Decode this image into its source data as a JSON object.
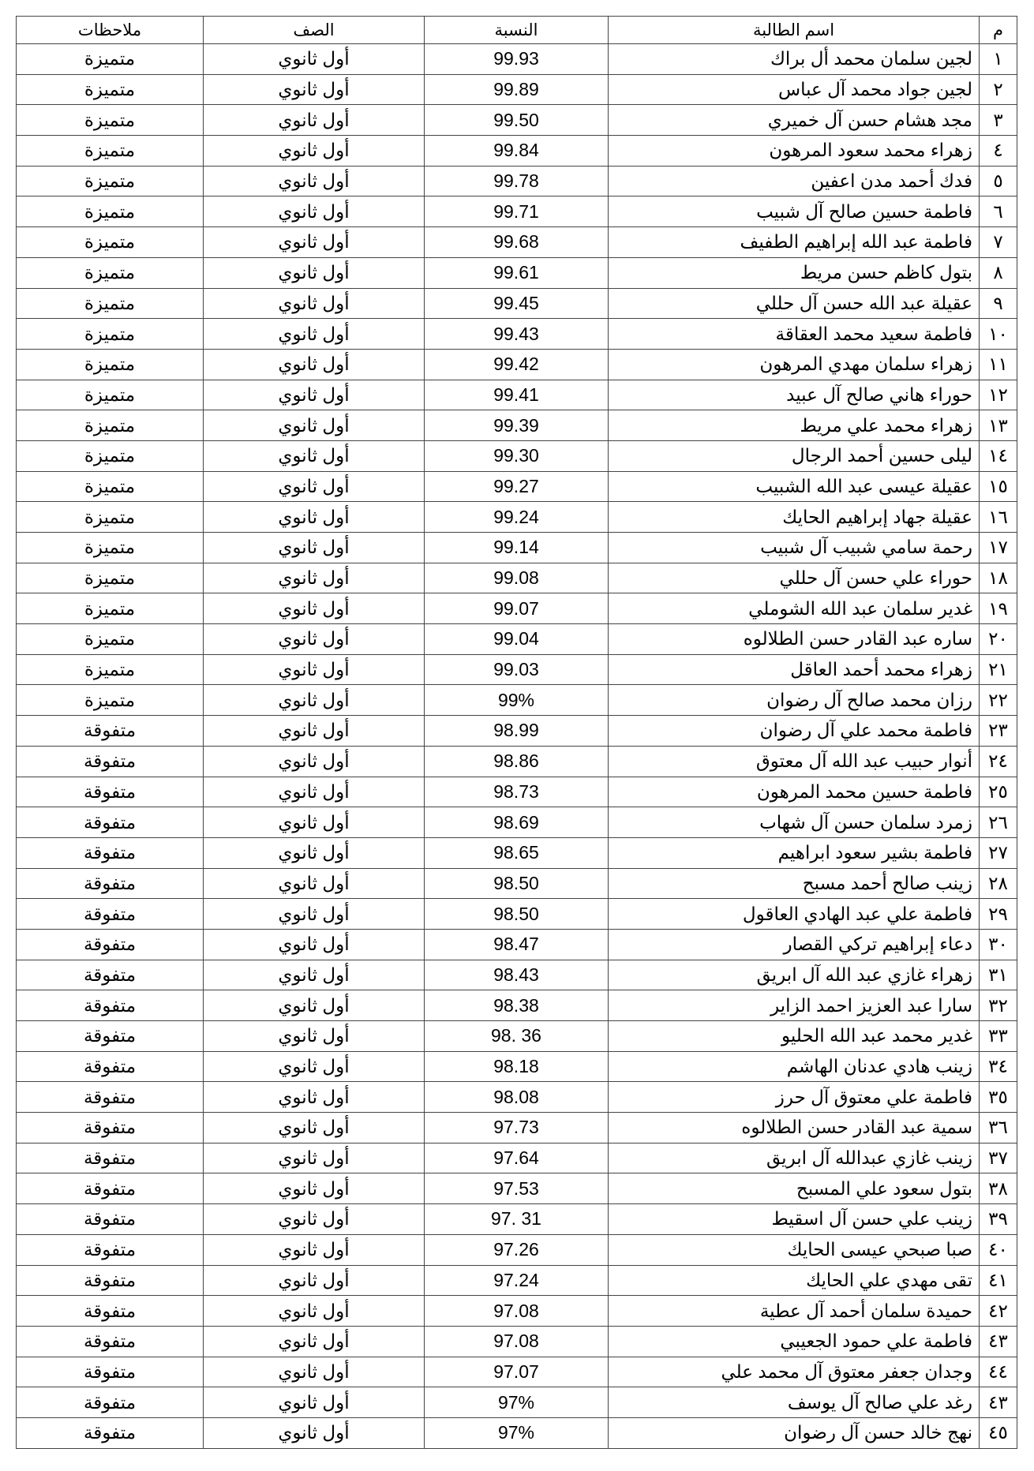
{
  "headers": {
    "num": "م",
    "name": "اسم الطالبة",
    "pct": "النسبة",
    "class": "الصف",
    "note": "ملاحظات"
  },
  "rows": [
    {
      "num": "١",
      "name": "لجين سلمان محمد أل براك",
      "pct": "99.93",
      "class": "أول ثانوي",
      "note": "متميزة"
    },
    {
      "num": "٢",
      "name": "لجين جواد محمد آل عباس",
      "pct": "99.89",
      "class": "أول ثانوي",
      "note": "متميزة"
    },
    {
      "num": "٣",
      "name": "مجد هشام حسن آل خميري",
      "pct": "99.50",
      "class": "أول ثانوي",
      "note": "متميزة"
    },
    {
      "num": "٤",
      "name": "زهراء محمد سعود المرهون",
      "pct": "99.84",
      "class": "أول ثانوي",
      "note": "متميزة"
    },
    {
      "num": "٥",
      "name": "فدك أحمد مدن اعفين",
      "pct": "99.78",
      "class": "أول ثانوي",
      "note": "متميزة"
    },
    {
      "num": "٦",
      "name": "فاطمة  حسين صالح آل شبيب",
      "pct": "99.71",
      "class": "أول ثانوي",
      "note": "متميزة"
    },
    {
      "num": "٧",
      "name": "فاطمة عبد الله إبراهيم الطفيف",
      "pct": "99.68",
      "class": "أول ثانوي",
      "note": "متميزة"
    },
    {
      "num": "٨",
      "name": "بتول كاظم حسن مريط",
      "pct": "99.61",
      "class": "أول ثانوي",
      "note": "متميزة"
    },
    {
      "num": "٩",
      "name": "عقيلة عبد الله حسن آل حللي",
      "pct": "99.45",
      "class": "أول ثانوي",
      "note": "متميزة"
    },
    {
      "num": "١٠",
      "name": "فاطمة سعيد محمد العقاقة",
      "pct": "99.43",
      "class": "أول ثانوي",
      "note": "متميزة"
    },
    {
      "num": "١١",
      "name": "زهراء سلمان مهدي المرهون",
      "pct": "99.42",
      "class": "أول ثانوي",
      "note": "متميزة"
    },
    {
      "num": "١٢",
      "name": "حوراء هاني صالح آل عبيد",
      "pct": "99.41",
      "class": "أول ثانوي",
      "note": "متميزة"
    },
    {
      "num": "١٣",
      "name": "زهراء محمد علي مريط",
      "pct": "99.39",
      "class": "أول ثانوي",
      "note": "متميزة"
    },
    {
      "num": "١٤",
      "name": "ليلى حسين أحمد الرجال",
      "pct": "99.30",
      "class": "أول ثانوي",
      "note": "متميزة"
    },
    {
      "num": "١٥",
      "name": "عقيلة عيسى عبد الله الشبيب",
      "pct": "99.27",
      "class": "أول ثانوي",
      "note": "متميزة"
    },
    {
      "num": "١٦",
      "name": "عقيلة جهاد إبراهيم الحايك",
      "pct": "99.24",
      "class": "أول ثانوي",
      "note": "متميزة"
    },
    {
      "num": "١٧",
      "name": "رحمة سامي شبيب آل شبيب",
      "pct": "99.14",
      "class": "أول ثانوي",
      "note": "متميزة"
    },
    {
      "num": "١٨",
      "name": "حوراء علي حسن آل حللي",
      "pct": "99.08",
      "class": "أول ثانوي",
      "note": "متميزة"
    },
    {
      "num": "١٩",
      "name": "غدير سلمان عبد الله الشوملي",
      "pct": "99.07",
      "class": "أول ثانوي",
      "note": "متميزة"
    },
    {
      "num": "٢٠",
      "name": "ساره عبد القادر حسن الطلالوه",
      "pct": "99.04",
      "class": "أول ثانوي",
      "note": "متميزة"
    },
    {
      "num": "٢١",
      "name": "زهراء محمد أحمد العاقل",
      "pct": "99.03",
      "class": "أول ثانوي",
      "note": "متميزة"
    },
    {
      "num": "٢٢",
      "name": "رزان محمد صالح آل رضوان",
      "pct": "99%",
      "class": "أول ثانوي",
      "note": "متميزة"
    },
    {
      "num": "٢٣",
      "name": "فاطمة محمد علي آل رضوان",
      "pct": "98.99",
      "class": "أول ثانوي",
      "note": "متفوقة"
    },
    {
      "num": "٢٤",
      "name": "أنوار حبيب عبد الله آل معتوق",
      "pct": "98.86",
      "class": "أول ثانوي",
      "note": "متفوقة"
    },
    {
      "num": "٢٥",
      "name": "فاطمة حسين محمد المرهون",
      "pct": "98.73",
      "class": "أول ثانوي",
      "note": "متفوقة"
    },
    {
      "num": "٢٦",
      "name": "زمرد سلمان حسن آل شهاب",
      "pct": "98.69",
      "class": "أول ثانوي",
      "note": "متفوقة"
    },
    {
      "num": "٢٧",
      "name": "فاطمة بشير سعود ابراهيم",
      "pct": "98.65",
      "class": "أول ثانوي",
      "note": "متفوقة"
    },
    {
      "num": "٢٨",
      "name": "زينب صالح أحمد مسبح",
      "pct": "98.50",
      "class": "أول ثانوي",
      "note": "متفوقة"
    },
    {
      "num": "٢٩",
      "name": "فاطمة علي عبد الهادي العاقول",
      "pct": "98.50",
      "class": "أول ثانوي",
      "note": "متفوقة"
    },
    {
      "num": "٣٠",
      "name": "دعاء إبراهيم تركي القصار",
      "pct": "98.47",
      "class": "أول ثانوي",
      "note": "متفوقة"
    },
    {
      "num": "٣١",
      "name": "زهراء غازي عبد الله آل  ابريق",
      "pct": "98.43",
      "class": "أول ثانوي",
      "note": "متفوقة"
    },
    {
      "num": "٣٢",
      "name": "سارا عبد العزيز احمد الزاير",
      "pct": "98.38",
      "class": "أول ثانوي",
      "note": "متفوقة"
    },
    {
      "num": "٣٣",
      "name": "غدير محمد عبد الله الحليو",
      "pct": "98. 36",
      "class": "أول ثانوي",
      "note": "متفوقة"
    },
    {
      "num": "٣٤",
      "name": "زينب هادي عدنان الهاشم",
      "pct": "98.18",
      "class": "أول ثانوي",
      "note": "متفوقة"
    },
    {
      "num": "٣٥",
      "name": "فاطمة علي معتوق آل حرز",
      "pct": "98.08",
      "class": "أول ثانوي",
      "note": "متفوقة"
    },
    {
      "num": "٣٦",
      "name": "سمية عبد القادر حسن الطلالوه",
      "pct": "97.73",
      "class": "أول ثانوي",
      "note": "متفوقة"
    },
    {
      "num": "٣٧",
      "name": "زينب غازي عبدالله  آل ابريق",
      "pct": "97.64",
      "class": "أول ثانوي",
      "note": "متفوقة"
    },
    {
      "num": "٣٨",
      "name": "بتول سعود علي المسبح",
      "pct": "97.53",
      "class": "أول ثانوي",
      "note": "متفوقة"
    },
    {
      "num": "٣٩",
      "name": "زينب علي حسن آل اسقيط",
      "pct": "97. 31",
      "class": "أول ثانوي",
      "note": "متفوقة"
    },
    {
      "num": "٤٠",
      "name": "صبا صبحي عيسى الحايك",
      "pct": "97.26",
      "class": "أول ثانوي",
      "note": "متفوقة"
    },
    {
      "num": "٤١",
      "name": "تقى مهدي علي الحايك",
      "pct": "97.24",
      "class": "أول ثانوي",
      "note": "متفوقة"
    },
    {
      "num": "٤٢",
      "name": "حميدة سلمان  أحمد آل عطية",
      "pct": "97.08",
      "class": "أول ثانوي",
      "note": "متفوقة"
    },
    {
      "num": "٤٣",
      "name": "فاطمة علي حمود الجعيبي",
      "pct": "97.08",
      "class": "أول ثانوي",
      "note": "متفوقة"
    },
    {
      "num": "٤٤",
      "name": "وجدان جعفر معتوق آل محمد علي",
      "pct": "97.07",
      "class": "أول ثانوي",
      "note": "متفوقة"
    },
    {
      "num": "٤٣",
      "name": "رغد علي صالح  آل يوسف",
      "pct": "97%",
      "class": "أول ثانوي",
      "note": "متفوقة"
    },
    {
      "num": "٤٥",
      "name": "نهج خالد حسن آل رضوان",
      "pct": "97%",
      "class": "أول ثانوي",
      "note": "متفوقة"
    }
  ]
}
